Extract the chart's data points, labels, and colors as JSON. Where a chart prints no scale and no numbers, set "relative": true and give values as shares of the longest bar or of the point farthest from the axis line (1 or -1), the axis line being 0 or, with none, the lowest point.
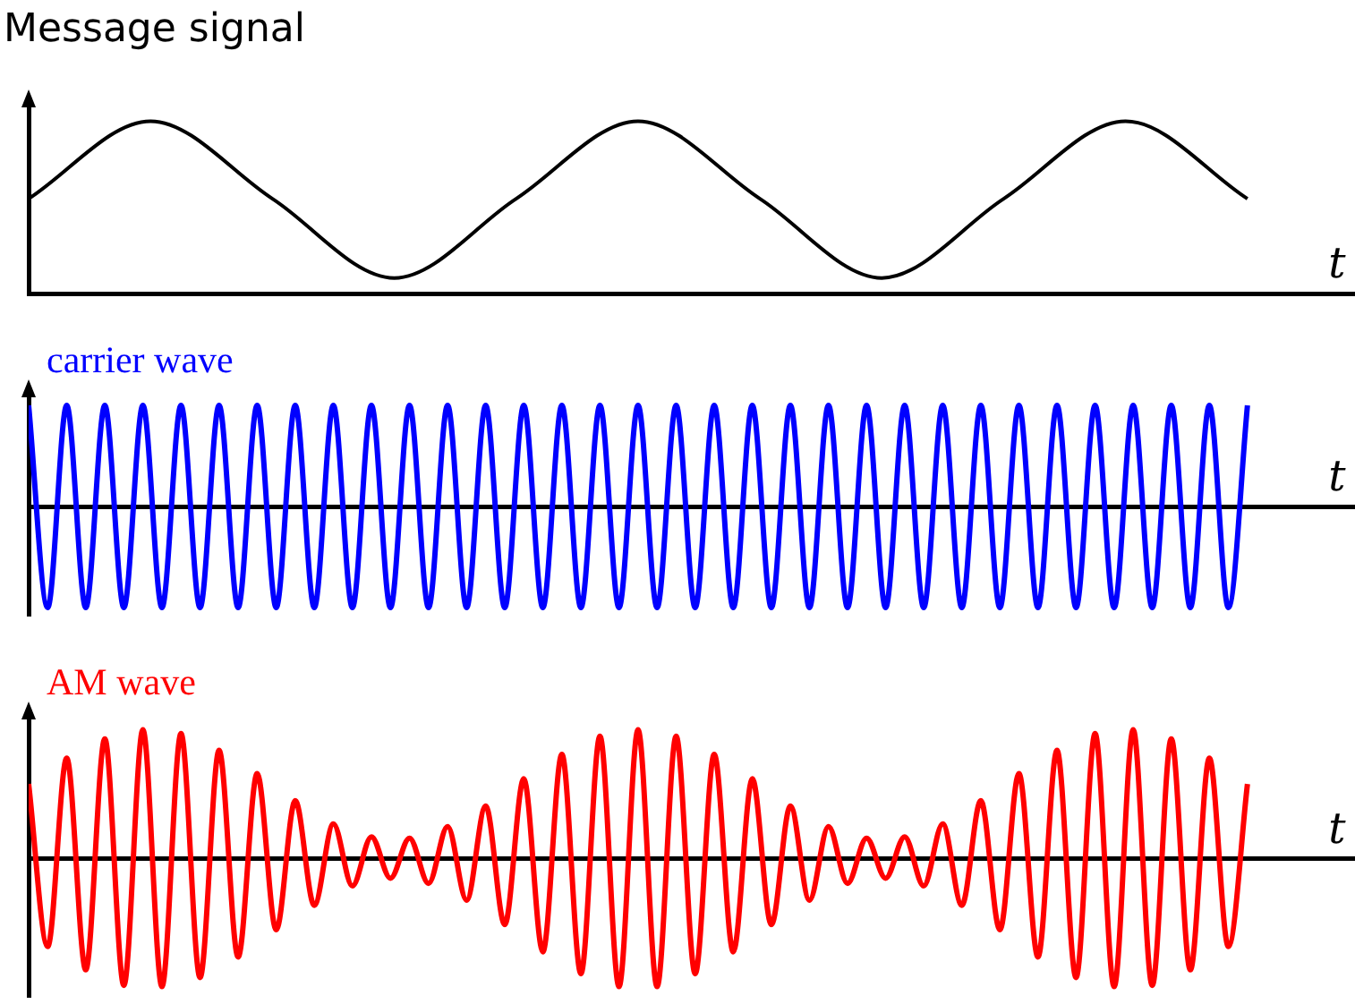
{
  "chart_data": [
    {
      "type": "line",
      "title": "Message signal",
      "xlabel": "t",
      "relative": true,
      "tick_labels": false,
      "legend": false,
      "marker": "none",
      "line_style": "solid",
      "categories": [
        null,
        null,
        null,
        null,
        null,
        null,
        null,
        null,
        null,
        null,
        null
      ],
      "series": [
        {
          "color": "#000000",
          "values": [
            0.55,
            1,
            0.55,
            0.09,
            0.55,
            1,
            0.55,
            0.09,
            0.55,
            1,
            0.55
          ]
        }
      ]
    },
    {
      "type": "line",
      "xlabel": "t",
      "relative": true,
      "tick_labels": false,
      "legend": false,
      "marker": "none",
      "line_style": "solid",
      "categories": [
        null,
        null,
        null,
        null,
        null,
        null,
        null,
        null,
        null,
        null,
        null,
        null,
        null,
        null,
        null,
        null,
        null,
        null,
        null,
        null,
        null,
        null,
        null,
        null,
        null,
        null,
        null,
        null,
        null,
        null,
        null,
        null,
        null,
        null,
        null,
        null,
        null,
        null,
        null,
        null,
        null,
        null,
        null,
        null,
        null,
        null,
        null,
        null,
        null,
        null,
        null,
        null,
        null,
        null,
        null,
        null,
        null,
        null,
        null,
        null,
        null,
        null,
        null,
        null,
        null
      ],
      "series": [
        {
          "name": "carrier wave",
          "color": "#0000ff",
          "values": [
            1,
            -1,
            1,
            -1,
            1,
            -1,
            1,
            -1,
            1,
            -1,
            1,
            -1,
            1,
            -1,
            1,
            -1,
            1,
            -1,
            1,
            -1,
            1,
            -1,
            1,
            -1,
            1,
            -1,
            1,
            -1,
            1,
            -1,
            1,
            -1,
            1,
            -1,
            1,
            -1,
            1,
            -1,
            1,
            -1,
            1,
            -1,
            1,
            -1,
            1,
            -1,
            1,
            -1,
            1,
            -1,
            1,
            -1,
            1,
            -1,
            1,
            -1,
            1,
            -1,
            1,
            -1,
            1,
            -1,
            1,
            -1,
            1
          ]
        }
      ]
    },
    {
      "type": "line",
      "xlabel": "t",
      "relative": true,
      "tick_labels": false,
      "legend": false,
      "marker": "none",
      "line_style": "solid",
      "categories": [
        null,
        null,
        null,
        null,
        null,
        null,
        null,
        null,
        null,
        null,
        null,
        null,
        null,
        null,
        null,
        null,
        null,
        null,
        null,
        null,
        null,
        null,
        null,
        null,
        null,
        null,
        null,
        null,
        null,
        null,
        null,
        null,
        null,
        null,
        null,
        null,
        null,
        null,
        null,
        null,
        null,
        null,
        null,
        null,
        null,
        null,
        null,
        null,
        null,
        null,
        null,
        null,
        null,
        null,
        null,
        null,
        null,
        null,
        null,
        null,
        null,
        null,
        null,
        null,
        null
      ],
      "series": [
        {
          "name": "AM wave",
          "color": "#ff0000",
          "values": [
            0.58,
            -0.68,
            0.78,
            -0.86,
            0.93,
            -0.98,
            1,
            -0.99,
            0.97,
            -0.92,
            0.84,
            -0.76,
            0.66,
            -0.55,
            0.45,
            -0.36,
            0.27,
            -0.21,
            0.17,
            -0.15,
            0.16,
            -0.19,
            0.25,
            -0.32,
            0.41,
            -0.51,
            0.62,
            -0.72,
            0.81,
            -0.89,
            0.95,
            -0.99,
            1,
            -0.99,
            0.95,
            -0.89,
            0.81,
            -0.72,
            0.62,
            -0.51,
            0.41,
            -0.32,
            0.25,
            -0.19,
            0.16,
            -0.15,
            0.17,
            -0.21,
            0.27,
            -0.36,
            0.45,
            -0.55,
            0.66,
            -0.76,
            0.84,
            -0.92,
            0.97,
            -0.99,
            1,
            -0.98,
            0.93,
            -0.86,
            0.78,
            -0.68,
            0.58
          ]
        }
      ]
    }
  ]
}
